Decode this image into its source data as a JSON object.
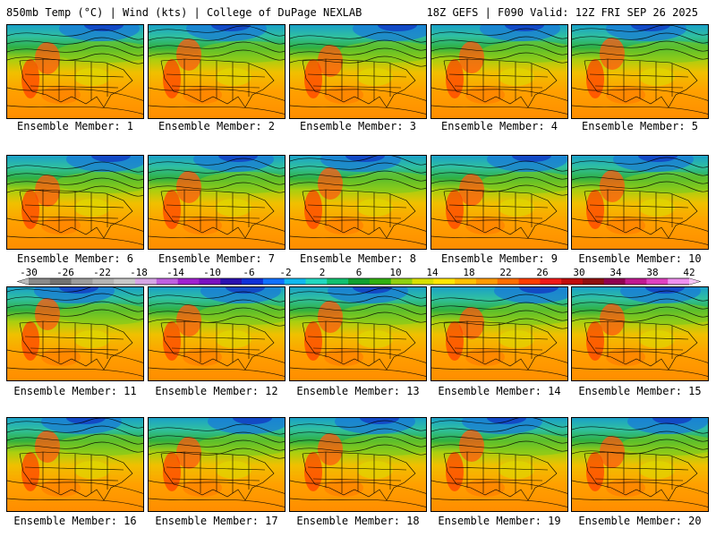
{
  "header": {
    "left": "850mb Temp (°C) | Wind (kts) | College of DuPage NEXLAB",
    "right": "18Z GEFS | F090 Valid: 12Z FRI SEP 26 2025"
  },
  "label_prefix": "Ensemble Member: ",
  "members": [
    1,
    2,
    3,
    4,
    5,
    6,
    7,
    8,
    9,
    10,
    11,
    12,
    13,
    14,
    15,
    16,
    17,
    18,
    19,
    20
  ],
  "colorbar": {
    "ticks": [
      "-30",
      "-26",
      "-22",
      "-18",
      "-14",
      "-10",
      "-6",
      "-2",
      "2",
      "6",
      "10",
      "14",
      "18",
      "22",
      "26",
      "30",
      "34",
      "38",
      "42"
    ],
    "colors": [
      "#8a8a8a",
      "#727272",
      "#9c9c9c",
      "#b4b4b4",
      "#c8c8c8",
      "#d6a6e6",
      "#bf60e0",
      "#a020d0",
      "#7a10c0",
      "#2a10b0",
      "#1030d8",
      "#1070ff",
      "#10b8f0",
      "#20d8c0",
      "#10c070",
      "#10a030",
      "#30b010",
      "#90d010",
      "#d8e000",
      "#ffe600",
      "#ffc000",
      "#ff9a00",
      "#ff6e00",
      "#ff3c00",
      "#f01818",
      "#c00c0c",
      "#901010",
      "#900050",
      "#c01890",
      "#e040c0",
      "#f090f0"
    ]
  }
}
